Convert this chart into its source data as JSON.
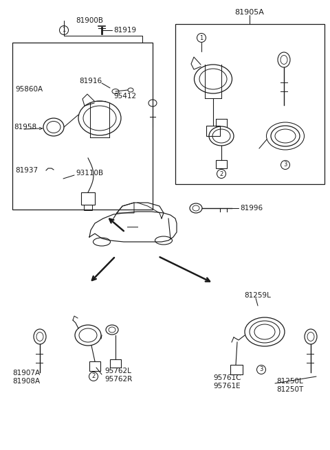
{
  "bg_color": "#ffffff",
  "line_color": "#1a1a1a",
  "gray_color": "#888888",
  "labels": {
    "title_right": "81905A",
    "upper_left_title": "81900B",
    "bolt_label": "81919",
    "part_95860A": "95860A",
    "part_81916": "81916",
    "part_95412": "95412",
    "part_81958": "81958",
    "part_81937": "81937",
    "part_93110B": "93110B",
    "part_81996": "81996",
    "part_81907A": "81907A",
    "part_81908A": "81908A",
    "part_95762L": "95762L",
    "part_95762R": "95762R",
    "part_81259L": "81259L",
    "part_95761C": "95761C",
    "part_95761E": "95761E",
    "part_81250L": "81250L",
    "part_81250T": "81250T"
  },
  "fs": 7.5,
  "fs_small": 6.5
}
